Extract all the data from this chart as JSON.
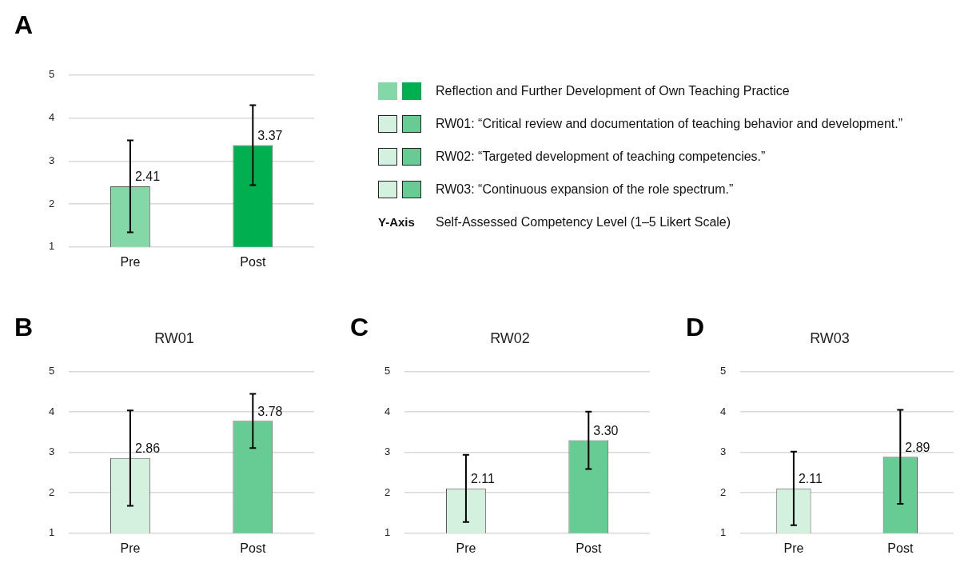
{
  "chart_data": [
    {
      "type": "bar",
      "annotations": [
        "A"
      ],
      "categories": [
        "Pre",
        "Post"
      ],
      "values": [
        2.41,
        3.37
      ],
      "colors": [
        "#84d8a8",
        "#00b050"
      ],
      "errors": [
        1.07,
        0.93
      ],
      "value_labels": [
        "2.41",
        "3.37"
      ],
      "ylim": [
        1,
        5
      ],
      "yticks": [
        1,
        2,
        3,
        4,
        5
      ],
      "grid": "y"
    },
    {
      "type": "other",
      "annotations": [
        "Reflection and Further Development of Own Teaching Practice",
        "RW01: “Critical review and documentation of teaching behavior and development.”",
        "RW02: “Targeted development of teaching competencies.”",
        "RW03: “Continuous expansion of the role spectrum.”",
        "Y-Axis",
        "Self-Assessed Competency Level (1–5 Likert Scale)"
      ]
    },
    {
      "type": "bar",
      "title": "RW01",
      "annotations": [
        "B"
      ],
      "categories": [
        "Pre",
        "Post"
      ],
      "values": [
        2.86,
        3.78
      ],
      "colors": [
        "#d4f1df",
        "#66cc93"
      ],
      "errors": [
        1.18,
        0.67
      ],
      "value_labels": [
        "2.86",
        "3.78"
      ],
      "ylim": [
        1,
        5
      ],
      "yticks": [
        1,
        2,
        3,
        4,
        5
      ],
      "grid": "y"
    },
    {
      "type": "bar",
      "title": "RW02",
      "annotations": [
        "C"
      ],
      "categories": [
        "Pre",
        "Post"
      ],
      "values": [
        2.11,
        3.3
      ],
      "colors": [
        "#d4f1df",
        "#66cc93"
      ],
      "errors": [
        0.83,
        0.71
      ],
      "value_labels": [
        "2.11",
        "3.30"
      ],
      "ylim": [
        1,
        5
      ],
      "yticks": [
        1,
        2,
        3,
        4,
        5
      ],
      "grid": "y"
    },
    {
      "type": "bar",
      "title": "RW03",
      "annotations": [
        "D"
      ],
      "categories": [
        "Pre",
        "Post"
      ],
      "values": [
        2.11,
        2.89
      ],
      "colors": [
        "#d4f1df",
        "#66cc93"
      ],
      "errors": [
        0.91,
        1.16
      ],
      "value_labels": [
        "2.11",
        "2.89"
      ],
      "ylim": [
        1,
        5
      ],
      "yticks": [
        1,
        2,
        3,
        4,
        5
      ],
      "grid": "y"
    }
  ]
}
